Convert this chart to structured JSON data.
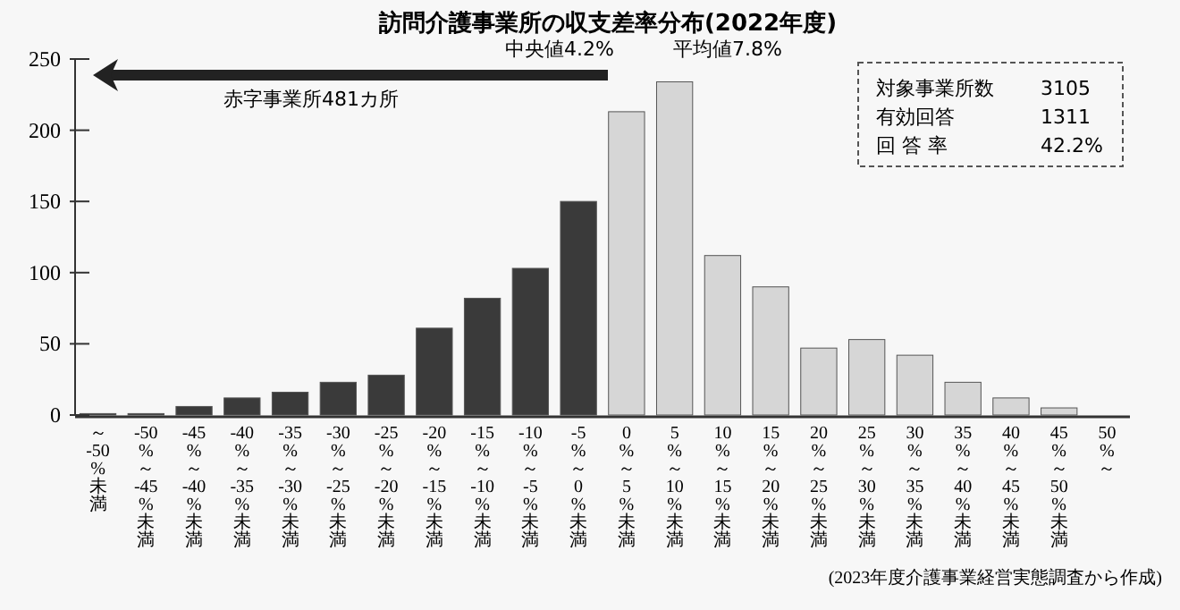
{
  "chart_data": {
    "type": "bar",
    "title": "訪問介護事業所の収支差率分布(2022年度)",
    "categories": [
      "～-50%未満",
      "-50%～-45%未満",
      "-45%～-40%未満",
      "-40%～-35%未満",
      "-35%～-30%未満",
      "-30%～-25%未満",
      "-25%～-20%未満",
      "-20%～-15%未満",
      "-15%～-10%未満",
      "-10%～-5%未満",
      "-5%～0%未満",
      "0%～5%未満",
      "5%～10%未満",
      "10%～15%未満",
      "15%～20%未満",
      "20%～25%未満",
      "25%～30%未満",
      "30%～35%未満",
      "35%～40%未満",
      "40%～45%未満",
      "45%～50%未満",
      "50%～"
    ],
    "values": [
      1,
      1,
      6,
      12,
      16,
      23,
      28,
      61,
      82,
      103,
      150,
      213,
      234,
      112,
      90,
      47,
      53,
      42,
      23,
      12,
      5,
      0
    ],
    "colors": [
      "#3a3a3a",
      "#3a3a3a",
      "#3a3a3a",
      "#3a3a3a",
      "#3a3a3a",
      "#3a3a3a",
      "#3a3a3a",
      "#3a3a3a",
      "#3a3a3a",
      "#3a3a3a",
      "#3a3a3a",
      "#d6d6d6",
      "#d6d6d6",
      "#d6d6d6",
      "#d6d6d6",
      "#d6d6d6",
      "#d6d6d6",
      "#d6d6d6",
      "#d6d6d6",
      "#d6d6d6",
      "#d6d6d6",
      "#d6d6d6"
    ],
    "ylim": [
      0,
      250
    ],
    "yticks": [
      0,
      50,
      100,
      150,
      200,
      250
    ],
    "grid": false,
    "annotations": [
      "赤字事業所481カ所",
      "中央値4.2%",
      "平均値7.8%",
      "対象事業所数 3105",
      "有効回答 1311",
      "回 答 率 42.2%",
      "(2023年度介護事業経営実態調査から作成)"
    ]
  }
}
